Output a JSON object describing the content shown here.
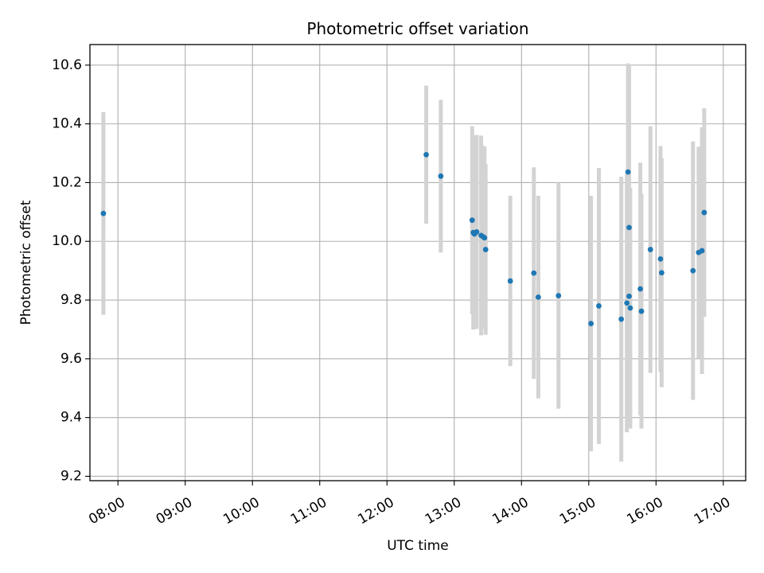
{
  "chart_data": {
    "type": "scatter",
    "title": "Photometric offset variation",
    "xlabel": "UTC time",
    "ylabel": "Photometric offset",
    "x_unit": "UTC time (HH:MM)",
    "xlim": [
      "07:35",
      "17:20"
    ],
    "ylim": [
      9.185,
      10.67
    ],
    "x_ticks": [
      "08:00",
      "09:00",
      "10:00",
      "11:00",
      "12:00",
      "13:00",
      "14:00",
      "15:00",
      "16:00",
      "17:00"
    ],
    "y_ticks": [
      9.2,
      9.4,
      9.6,
      9.8,
      10.0,
      10.2,
      10.4,
      10.6
    ],
    "y_tick_labels": [
      "9.2",
      "9.4",
      "9.6",
      "9.8",
      "10.0",
      "10.2",
      "10.4",
      "10.6"
    ],
    "x_tick_label_rotation_deg": 30,
    "grid": true,
    "legend": false,
    "colors": {
      "marker": "#1f77b4",
      "errorbar": "#d3d3d3",
      "grid": "#b0b0b0"
    },
    "points": [
      {
        "x": "07:47",
        "y": 10.095,
        "err": 0.345
      },
      {
        "x": "12:35",
        "y": 10.295,
        "err": 0.235
      },
      {
        "x": "12:48",
        "y": 10.222,
        "err": 0.26
      },
      {
        "x": "13:16",
        "y": 10.072,
        "err": 0.32
      },
      {
        "x": "13:17",
        "y": 10.03,
        "err": 0.33
      },
      {
        "x": "13:18",
        "y": 10.025,
        "err": 0.31
      },
      {
        "x": "13:20",
        "y": 10.032,
        "err": 0.33
      },
      {
        "x": "13:24",
        "y": 10.02,
        "err": 0.34
      },
      {
        "x": "13:26",
        "y": 10.015,
        "err": 0.31
      },
      {
        "x": "13:27",
        "y": 10.012,
        "err": 0.31
      },
      {
        "x": "13:28",
        "y": 9.972,
        "err": 0.29
      },
      {
        "x": "13:50",
        "y": 9.865,
        "err": 0.29
      },
      {
        "x": "14:11",
        "y": 9.892,
        "err": 0.36
      },
      {
        "x": "14:15",
        "y": 9.81,
        "err": 0.345
      },
      {
        "x": "14:33",
        "y": 9.815,
        "err": 0.385
      },
      {
        "x": "15:02",
        "y": 9.72,
        "err": 0.435
      },
      {
        "x": "15:09",
        "y": 9.78,
        "err": 0.47
      },
      {
        "x": "15:29",
        "y": 9.735,
        "err": 0.485
      },
      {
        "x": "15:34",
        "y": 9.79,
        "err": 0.44
      },
      {
        "x": "15:35",
        "y": 10.236,
        "err": 0.37
      },
      {
        "x": "15:36",
        "y": 10.047,
        "err": 0.555
      },
      {
        "x": "15:36",
        "y": 9.813,
        "err": 0.4
      },
      {
        "x": "15:37",
        "y": 9.773,
        "err": 0.41
      },
      {
        "x": "15:46",
        "y": 9.838,
        "err": 0.43
      },
      {
        "x": "15:47",
        "y": 9.762,
        "err": 0.4
      },
      {
        "x": "15:55",
        "y": 9.972,
        "err": 0.42
      },
      {
        "x": "16:04",
        "y": 9.94,
        "err": 0.385
      },
      {
        "x": "16:05",
        "y": 9.893,
        "err": 0.39
      },
      {
        "x": "16:33",
        "y": 9.9,
        "err": 0.44
      },
      {
        "x": "16:38",
        "y": 9.962,
        "err": 0.36
      },
      {
        "x": "16:41",
        "y": 9.968,
        "err": 0.42
      },
      {
        "x": "16:43",
        "y": 10.098,
        "err": 0.355
      }
    ]
  }
}
